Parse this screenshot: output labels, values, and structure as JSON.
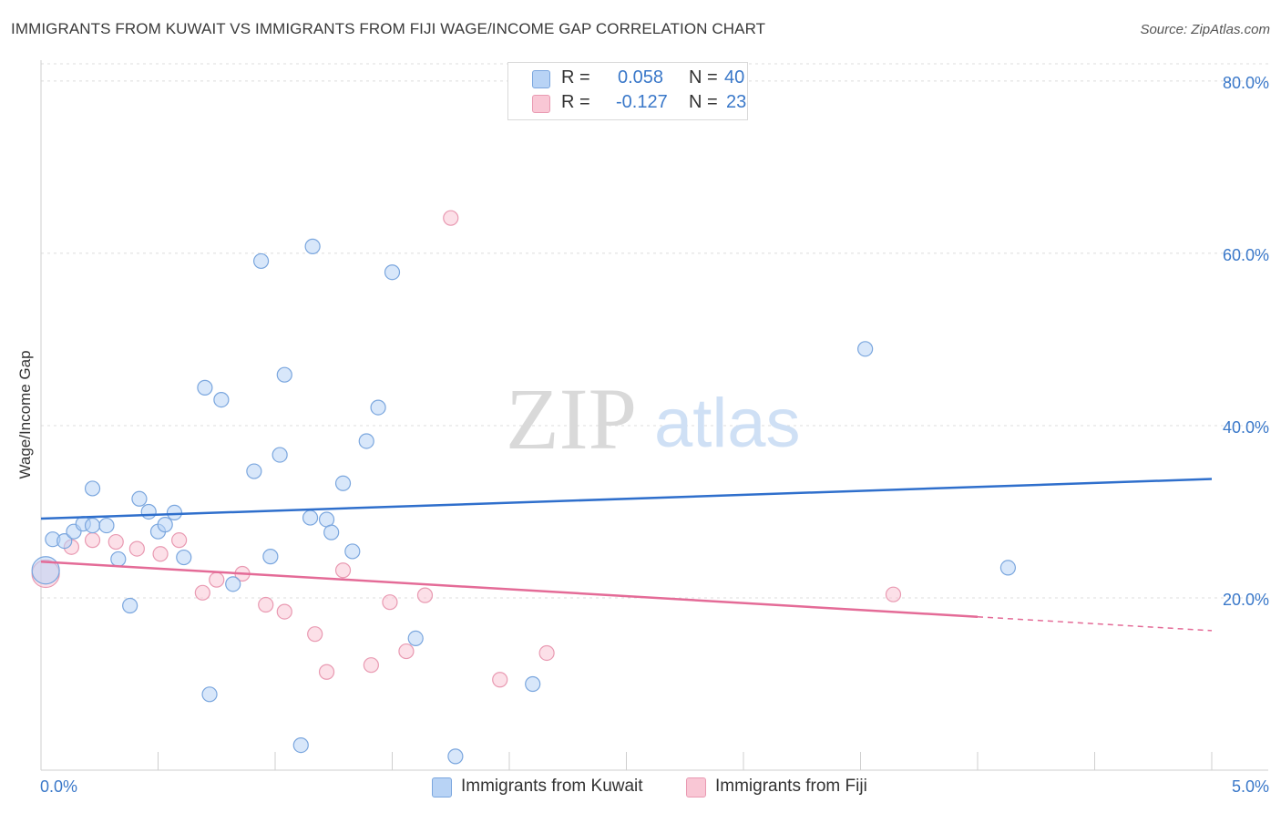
{
  "title": "IMMIGRANTS FROM KUWAIT VS IMMIGRANTS FROM FIJI WAGE/INCOME GAP CORRELATION CHART",
  "source": "Source: ZipAtlas.com",
  "watermark": {
    "zip": "ZIP",
    "atlas": "atlas"
  },
  "legend": {
    "rows": [
      {
        "r_label": "R =",
        "r_value": "0.058",
        "n_label": "N =",
        "n_value": "40"
      },
      {
        "r_label": "R =",
        "r_value": "-0.127",
        "n_label": "N =",
        "n_value": "23"
      }
    ]
  },
  "colors": {
    "kuwait_fill": "#b8d3f5",
    "kuwait_stroke": "#7aa6de",
    "kuwait_line": "#2f6fcc",
    "fiji_fill": "#f9c7d5",
    "fiji_stroke": "#e99ab2",
    "fiji_line": "#e46b97",
    "axis_text": "#3a78c9",
    "grid": "#dcdcdc"
  },
  "chart_data": {
    "type": "scatter",
    "title": "IMMIGRANTS FROM KUWAIT VS IMMIGRANTS FROM FIJI WAGE/INCOME GAP CORRELATION CHART",
    "xlabel": "",
    "ylabel": "Wage/Income Gap",
    "xlim": [
      0,
      5
    ],
    "ylim": [
      0,
      82
    ],
    "x_tick_labels": [
      "0.0%",
      "5.0%"
    ],
    "y_ticks": [
      20,
      40,
      60,
      80
    ],
    "y_tick_labels": [
      "20.0%",
      "40.0%",
      "60.0%",
      "80.0%"
    ],
    "grid": true,
    "legend_position": "top-center",
    "series": [
      {
        "name": "Immigrants from Kuwait",
        "r": 0.058,
        "n": 40,
        "trend": {
          "x": [
            0,
            5
          ],
          "y": [
            29.2,
            33.8
          ],
          "dashed_from": null
        },
        "points": [
          {
            "x": 0.02,
            "y": 23.2,
            "big": true
          },
          {
            "x": 0.05,
            "y": 26.8
          },
          {
            "x": 0.1,
            "y": 26.6
          },
          {
            "x": 0.14,
            "y": 27.7
          },
          {
            "x": 0.18,
            "y": 28.6
          },
          {
            "x": 0.22,
            "y": 28.4
          },
          {
            "x": 0.28,
            "y": 28.4
          },
          {
            "x": 0.22,
            "y": 32.7
          },
          {
            "x": 0.33,
            "y": 24.5
          },
          {
            "x": 0.38,
            "y": 19.1
          },
          {
            "x": 0.42,
            "y": 31.5
          },
          {
            "x": 0.46,
            "y": 30.0
          },
          {
            "x": 0.5,
            "y": 27.7
          },
          {
            "x": 0.53,
            "y": 28.5
          },
          {
            "x": 0.57,
            "y": 29.9
          },
          {
            "x": 0.61,
            "y": 24.7
          },
          {
            "x": 0.7,
            "y": 44.4
          },
          {
            "x": 0.77,
            "y": 43.0
          },
          {
            "x": 0.72,
            "y": 8.8
          },
          {
            "x": 0.82,
            "y": 21.6
          },
          {
            "x": 0.91,
            "y": 34.7
          },
          {
            "x": 0.94,
            "y": 59.1
          },
          {
            "x": 0.98,
            "y": 24.8
          },
          {
            "x": 1.02,
            "y": 36.6
          },
          {
            "x": 1.04,
            "y": 45.9
          },
          {
            "x": 1.11,
            "y": 2.9
          },
          {
            "x": 1.15,
            "y": 29.3
          },
          {
            "x": 1.16,
            "y": 60.8
          },
          {
            "x": 1.22,
            "y": 29.1
          },
          {
            "x": 1.24,
            "y": 27.6
          },
          {
            "x": 1.29,
            "y": 33.3
          },
          {
            "x": 1.33,
            "y": 25.4
          },
          {
            "x": 1.39,
            "y": 38.2
          },
          {
            "x": 1.44,
            "y": 42.1
          },
          {
            "x": 1.5,
            "y": 57.8
          },
          {
            "x": 1.6,
            "y": 15.3
          },
          {
            "x": 1.77,
            "y": 1.6
          },
          {
            "x": 2.1,
            "y": 10.0
          },
          {
            "x": 3.52,
            "y": 48.9
          },
          {
            "x": 4.13,
            "y": 23.5
          }
        ]
      },
      {
        "name": "Immigrants from Fiji",
        "r": -0.127,
        "n": 23,
        "trend": {
          "x": [
            0,
            5
          ],
          "y": [
            24.2,
            16.2
          ],
          "dashed_from": 4.0
        },
        "points": [
          {
            "x": 0.02,
            "y": 22.8,
            "big": true
          },
          {
            "x": 0.13,
            "y": 25.9
          },
          {
            "x": 0.22,
            "y": 26.7
          },
          {
            "x": 0.32,
            "y": 26.5
          },
          {
            "x": 0.41,
            "y": 25.7
          },
          {
            "x": 0.51,
            "y": 25.1
          },
          {
            "x": 0.59,
            "y": 26.7
          },
          {
            "x": 0.69,
            "y": 20.6
          },
          {
            "x": 0.75,
            "y": 22.1
          },
          {
            "x": 0.86,
            "y": 22.8
          },
          {
            "x": 0.96,
            "y": 19.2
          },
          {
            "x": 1.04,
            "y": 18.4
          },
          {
            "x": 1.17,
            "y": 15.8
          },
          {
            "x": 1.22,
            "y": 11.4
          },
          {
            "x": 1.29,
            "y": 23.2
          },
          {
            "x": 1.41,
            "y": 12.2
          },
          {
            "x": 1.49,
            "y": 19.5
          },
          {
            "x": 1.56,
            "y": 13.8
          },
          {
            "x": 1.64,
            "y": 20.3
          },
          {
            "x": 1.75,
            "y": 64.1
          },
          {
            "x": 1.96,
            "y": 10.5
          },
          {
            "x": 2.16,
            "y": 13.6
          },
          {
            "x": 3.64,
            "y": 20.4
          }
        ]
      }
    ]
  }
}
